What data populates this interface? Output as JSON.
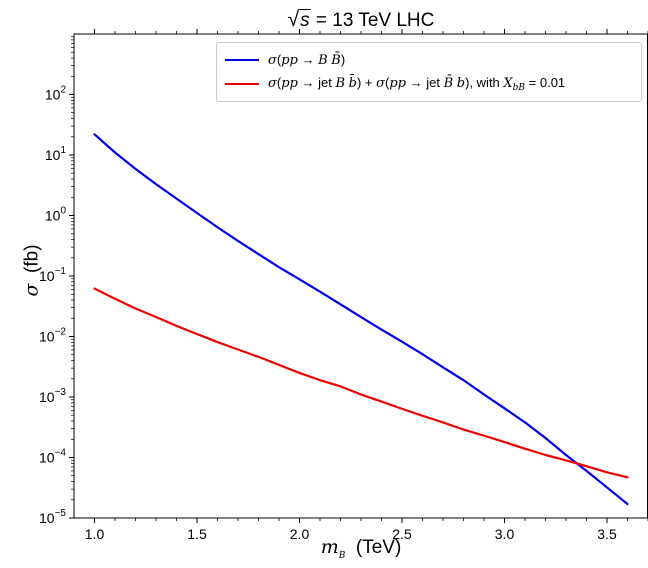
{
  "chart_data": {
    "type": "line",
    "title": {
      "radicand": "s",
      "rest": " = 13 TeV LHC"
    },
    "xlabel": {
      "symbol": "m",
      "subscript": "B",
      "unit": "(TeV)"
    },
    "ylabel": {
      "symbol": "σ",
      "unit": "(fb)"
    },
    "xlim": [
      0.9,
      3.7
    ],
    "ylim": [
      1e-05,
      1000
    ],
    "yscale": "log",
    "xticks": [
      "1.0",
      "1.5",
      "2.0",
      "2.5",
      "3.0",
      "3.5"
    ],
    "yticks": [
      {
        "base": "10",
        "exp": "−5"
      },
      {
        "base": "10",
        "exp": "−4"
      },
      {
        "base": "10",
        "exp": "−3"
      },
      {
        "base": "10",
        "exp": "−2"
      },
      {
        "base": "10",
        "exp": "−1"
      },
      {
        "base": "10",
        "exp": "0"
      },
      {
        "base": "10",
        "exp": "1"
      },
      {
        "base": "10",
        "exp": "2"
      }
    ],
    "grid": false,
    "legend_position": "top-right",
    "series": [
      {
        "name": "σ(pp → B B̄)",
        "color": "#0000ee",
        "x": [
          1.0,
          1.1,
          1.2,
          1.3,
          1.4,
          1.5,
          1.6,
          1.7,
          1.8,
          1.9,
          2.0,
          2.1,
          2.2,
          2.3,
          2.4,
          2.5,
          2.6,
          2.7,
          2.8,
          2.9,
          3.0,
          3.1,
          3.2,
          3.3,
          3.4,
          3.5,
          3.6
        ],
        "y": [
          22,
          11,
          5.9,
          3.3,
          1.9,
          1.1,
          0.64,
          0.38,
          0.23,
          0.14,
          0.088,
          0.055,
          0.034,
          0.021,
          0.013,
          0.0082,
          0.0051,
          0.0031,
          0.0019,
          0.0011,
          0.00065,
          0.00038,
          0.00021,
          0.00011,
          6e-05,
          3.2e-05,
          1.7e-05
        ]
      },
      {
        "name": "σ(pp → jet B b̄) + σ(pp → jet B̄ b), with X_bB = 0.01",
        "color": "#ee0000",
        "x": [
          1.0,
          1.1,
          1.2,
          1.3,
          1.4,
          1.5,
          1.6,
          1.7,
          1.8,
          1.9,
          2.0,
          2.1,
          2.2,
          2.3,
          2.4,
          2.5,
          2.6,
          2.7,
          2.8,
          2.9,
          3.0,
          3.1,
          3.2,
          3.3,
          3.4,
          3.5,
          3.6
        ],
        "y": [
          0.062,
          0.042,
          0.029,
          0.021,
          0.015,
          0.011,
          0.0081,
          0.0061,
          0.0046,
          0.0034,
          0.0025,
          0.0019,
          0.0015,
          0.0011,
          0.00084,
          0.00064,
          0.00049,
          0.00038,
          0.00029,
          0.00023,
          0.00018,
          0.00014,
          0.00011,
          9e-05,
          7.2e-05,
          5.7e-05,
          4.7e-05
        ]
      }
    ]
  },
  "legend": {
    "blue": {
      "sigma": "σ",
      "open": "(",
      "pp": "pp",
      "arrow": " → ",
      "B": "B",
      "space": " ",
      "Bbar": "B̄",
      "close": ")"
    },
    "red": {
      "sigma1": "σ",
      "open1": "(",
      "pp1": "pp",
      "arrow1": " → jet ",
      "B1": "B",
      "space1": " ",
      "bbar1": "b̄",
      "close1": ")",
      "plus": " + ",
      "sigma2": "σ",
      "open2": "(",
      "pp2": "pp",
      "arrow2": " → jet ",
      "Bbar2": "B̄",
      "space2": " ",
      "b2": "b",
      "close2": "), with ",
      "X": "X",
      "sub": "bB",
      "value": " = 0.01"
    }
  }
}
